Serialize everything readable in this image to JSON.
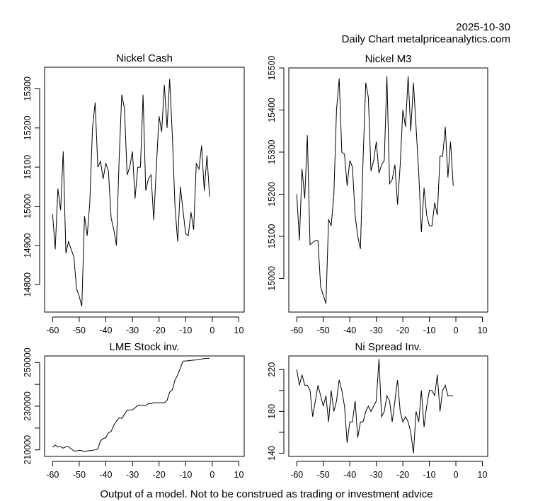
{
  "header": {
    "date": "2025-10-30",
    "subtitle": "Daily Chart metalpriceanalytics.com"
  },
  "footer": "Output of a model. Not to be construed as trading or investment advice",
  "chart_data": [
    {
      "id": "nickel-cash",
      "type": "line",
      "title": "Nickel Cash",
      "xlabel": "",
      "ylabel": "",
      "xlim": [
        -63,
        12
      ],
      "ylim": [
        14730,
        15355
      ],
      "xticks": [
        -60,
        -50,
        -40,
        -30,
        -20,
        -10,
        0,
        10
      ],
      "yticks": [
        14800,
        14900,
        15000,
        15100,
        15200,
        15300
      ],
      "x": [
        -60,
        -59,
        -58,
        -57,
        -56,
        -55,
        -54,
        -53,
        -52,
        -51,
        -50,
        -49,
        -48,
        -47,
        -46,
        -45,
        -44,
        -43,
        -42,
        -41,
        -40,
        -39,
        -38,
        -37,
        -36,
        -35,
        -34,
        -33,
        -32,
        -31,
        -30,
        -29,
        -28,
        -27,
        -26,
        -25,
        -24,
        -23,
        -22,
        -21,
        -20,
        -19,
        -18,
        -17,
        -16,
        -15,
        -14,
        -13,
        -12,
        -11,
        -10,
        -9,
        -8,
        -7,
        -6,
        -5,
        -4,
        -3,
        -2,
        -1
      ],
      "values": [
        14980,
        14890,
        15045,
        14990,
        15140,
        14880,
        14910,
        14890,
        14870,
        14790,
        14770,
        14745,
        14975,
        14925,
        15010,
        15200,
        15265,
        15100,
        15115,
        15070,
        15110,
        15090,
        14970,
        14940,
        14900,
        15120,
        15285,
        15250,
        15080,
        15100,
        15140,
        15020,
        15100,
        15100,
        15285,
        15040,
        15070,
        15080,
        14965,
        15100,
        15230,
        15190,
        15310,
        15200,
        15325,
        15180,
        15000,
        14910,
        15050,
        14990,
        14930,
        14925,
        14985,
        14940,
        15110,
        15095,
        15155,
        15040,
        15130,
        15025
      ]
    },
    {
      "id": "nickel-m3",
      "type": "line",
      "title": "Nickel M3",
      "xlabel": "",
      "ylabel": "",
      "xlim": [
        -63,
        12
      ],
      "ylim": [
        14920,
        15500
      ],
      "xticks": [
        -60,
        -50,
        -40,
        -30,
        -20,
        -10,
        0,
        10
      ],
      "yticks": [
        15000,
        15100,
        15200,
        15300,
        15400,
        15500
      ],
      "x": [
        -60,
        -59,
        -58,
        -57,
        -56,
        -55,
        -54,
        -53,
        -52,
        -51,
        -50,
        -49,
        -48,
        -47,
        -46,
        -45,
        -44,
        -43,
        -42,
        -41,
        -40,
        -39,
        -38,
        -37,
        -36,
        -35,
        -34,
        -33,
        -32,
        -31,
        -30,
        -29,
        -28,
        -27,
        -26,
        -25,
        -24,
        -23,
        -22,
        -21,
        -20,
        -19,
        -18,
        -17,
        -16,
        -15,
        -14,
        -13,
        -12,
        -11,
        -10,
        -9,
        -8,
        -7,
        -6,
        -5,
        -4,
        -3,
        -2,
        -1
      ],
      "values": [
        15200,
        15090,
        15260,
        15190,
        15340,
        15080,
        15085,
        15090,
        15090,
        14980,
        14960,
        14940,
        15140,
        15125,
        15200,
        15400,
        15475,
        15300,
        15295,
        15220,
        15280,
        15265,
        15150,
        15100,
        15070,
        15280,
        15465,
        15430,
        15255,
        15280,
        15325,
        15250,
        15270,
        15280,
        15480,
        15225,
        15235,
        15270,
        15175,
        15270,
        15400,
        15360,
        15480,
        15350,
        15465,
        15360,
        15250,
        15110,
        15215,
        15150,
        15125,
        15125,
        15180,
        15150,
        15290,
        15290,
        15360,
        15240,
        15325,
        15220
      ]
    },
    {
      "id": "lme-stock",
      "type": "line",
      "title": "LME Stock inv.",
      "xlabel": "",
      "ylabel": "",
      "xlim": [
        -63,
        12
      ],
      "ylim": [
        207000,
        253000
      ],
      "xticks": [
        -60,
        -50,
        -40,
        -30,
        -20,
        -10,
        0,
        10
      ],
      "yticks": [
        210000,
        220000,
        230000,
        240000,
        250000
      ],
      "ytick_labels": [
        "210000",
        "",
        "230000",
        "",
        "250000"
      ],
      "x": [
        -60,
        -59,
        -58,
        -57,
        -56,
        -55,
        -54,
        -53,
        -52,
        -51,
        -50,
        -49,
        -48,
        -47,
        -46,
        -45,
        -44,
        -43,
        -42,
        -41,
        -40,
        -39,
        -38,
        -37,
        -36,
        -35,
        -34,
        -33,
        -32,
        -31,
        -30,
        -29,
        -28,
        -27,
        -26,
        -25,
        -24,
        -23,
        -22,
        -21,
        -20,
        -19,
        -18,
        -17,
        -16,
        -15,
        -14,
        -13,
        -12,
        -11,
        -10,
        -9,
        -8,
        -7,
        -6,
        -5,
        -4,
        -3,
        -2,
        -1
      ],
      "values": [
        211200,
        212200,
        211300,
        211500,
        210800,
        211400,
        211500,
        210500,
        209500,
        209500,
        209800,
        209700,
        209100,
        209500,
        209700,
        209800,
        210000,
        210400,
        214200,
        215100,
        215600,
        217800,
        218400,
        221300,
        223100,
        224700,
        224400,
        226200,
        228200,
        228200,
        228300,
        229200,
        230400,
        230400,
        230400,
        230200,
        231100,
        231200,
        231600,
        231600,
        231600,
        231600,
        231600,
        232700,
        236400,
        237500,
        242000,
        244300,
        247500,
        250600,
        250700,
        250800,
        251000,
        251100,
        251200,
        251300,
        251600,
        251800,
        251900,
        251900
      ]
    },
    {
      "id": "ni-spread",
      "type": "line",
      "title": "Ni Spread Inv.",
      "xlabel": "",
      "ylabel": "",
      "xlim": [
        -63,
        12
      ],
      "ylim": [
        137,
        233
      ],
      "xticks": [
        -60,
        -50,
        -40,
        -30,
        -20,
        -10,
        0,
        10
      ],
      "yticks": [
        140,
        160,
        180,
        200,
        220
      ],
      "ytick_labels": [
        "140",
        "",
        "180",
        "",
        "220"
      ],
      "x": [
        -60,
        -59,
        -58,
        -57,
        -56,
        -55,
        -54,
        -53,
        -52,
        -51,
        -50,
        -49,
        -48,
        -47,
        -46,
        -45,
        -44,
        -43,
        -42,
        -41,
        -40,
        -39,
        -38,
        -37,
        -36,
        -35,
        -34,
        -33,
        -32,
        -31,
        -30,
        -29,
        -28,
        -27,
        -26,
        -25,
        -24,
        -23,
        -22,
        -21,
        -20,
        -19,
        -18,
        -17,
        -16,
        -15,
        -14,
        -13,
        -12,
        -11,
        -10,
        -9,
        -8,
        -7,
        -6,
        -5,
        -4,
        -3,
        -2,
        -1
      ],
      "values": [
        220,
        205,
        215,
        205,
        205,
        200,
        175,
        190,
        205,
        195,
        185,
        195,
        170,
        200,
        180,
        190,
        210,
        200,
        185,
        150,
        170,
        170,
        190,
        155,
        170,
        170,
        180,
        185,
        180,
        185,
        190,
        230,
        175,
        180,
        195,
        190,
        170,
        190,
        210,
        180,
        170,
        175,
        170,
        160,
        140,
        180,
        170,
        200,
        165,
        185,
        200,
        200,
        195,
        215,
        180,
        200,
        205,
        195,
        195,
        195
      ]
    }
  ]
}
